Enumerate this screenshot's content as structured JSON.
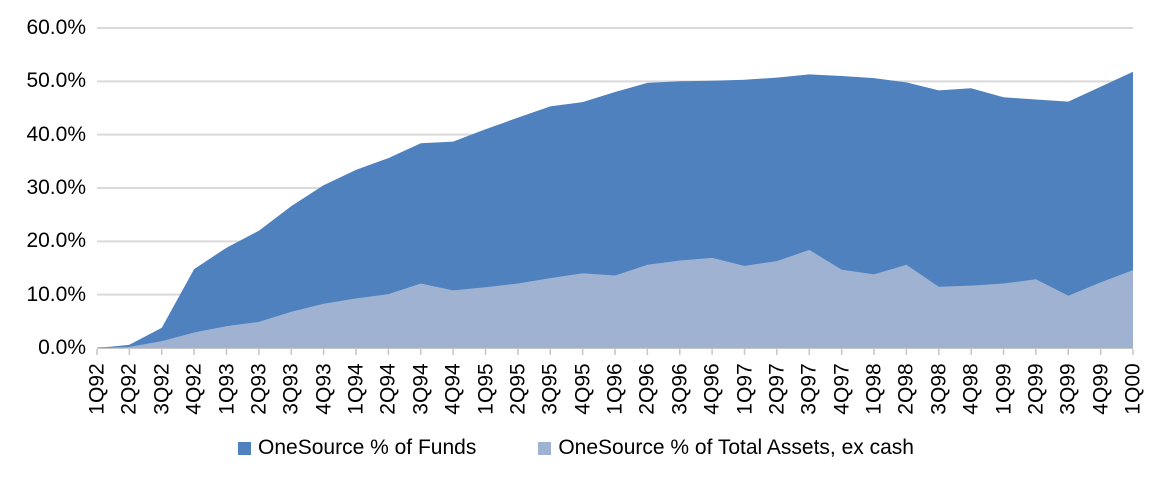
{
  "chart_data": {
    "type": "area",
    "title": "",
    "xlabel": "",
    "ylabel": "",
    "categories": [
      "1Q92",
      "2Q92",
      "3Q92",
      "4Q92",
      "1Q93",
      "2Q93",
      "3Q93",
      "4Q93",
      "1Q94",
      "2Q94",
      "3Q94",
      "4Q94",
      "1Q95",
      "2Q95",
      "3Q95",
      "4Q95",
      "1Q96",
      "2Q96",
      "3Q96",
      "4Q96",
      "1Q97",
      "2Q97",
      "3Q97",
      "4Q97",
      "1Q98",
      "2Q98",
      "3Q98",
      "4Q98",
      "1Q99",
      "2Q99",
      "3Q99",
      "4Q99",
      "1Q00"
    ],
    "series": [
      {
        "name": "OneSource % of Funds",
        "color": "#4E81BD",
        "values": [
          0.0,
          0.6,
          3.8,
          14.8,
          18.8,
          22.0,
          26.6,
          30.5,
          33.4,
          35.6,
          38.4,
          38.7,
          41.0,
          43.2,
          45.3,
          46.1,
          48.0,
          49.7,
          50.0,
          50.1,
          50.3,
          50.7,
          51.3,
          51.0,
          50.6,
          49.8,
          48.3,
          48.7,
          47.0,
          46.6,
          46.2,
          49.0,
          51.8
        ]
      },
      {
        "name": "OneSource % of Total Assets, ex cash",
        "color": "#A0B2D2",
        "values": [
          0.0,
          0.2,
          1.3,
          2.9,
          4.1,
          4.9,
          6.8,
          8.3,
          9.3,
          10.1,
          12.1,
          10.8,
          11.4,
          12.1,
          13.1,
          14.0,
          13.6,
          15.6,
          16.4,
          16.9,
          15.4,
          16.3,
          18.4,
          14.7,
          13.8,
          15.6,
          11.5,
          11.7,
          12.1,
          12.9,
          9.8,
          12.3,
          14.6
        ]
      }
    ],
    "ylim": [
      0,
      60
    ],
    "ytick_values": [
      0,
      10,
      20,
      30,
      40,
      50,
      60
    ],
    "ytick_labels": [
      "0.0%",
      "10.0%",
      "20.0%",
      "30.0%",
      "40.0%",
      "50.0%",
      "60.0%"
    ],
    "grid": "horizontal",
    "legend_position": "bottom"
  },
  "legend": {
    "items": [
      {
        "label": "OneSource % of Funds",
        "color": "#4E81BD"
      },
      {
        "label": "OneSource % of Total Assets, ex cash",
        "color": "#A0B2D2"
      }
    ]
  },
  "colors": {
    "background": "#FFFFFF",
    "gridline": "#D9D9D9",
    "axis_line": "#C6C6C6",
    "tick": "#C6C6C6",
    "text": "#000000",
    "series_dark": "#4E81BD",
    "series_light": "#A0B2D2"
  }
}
